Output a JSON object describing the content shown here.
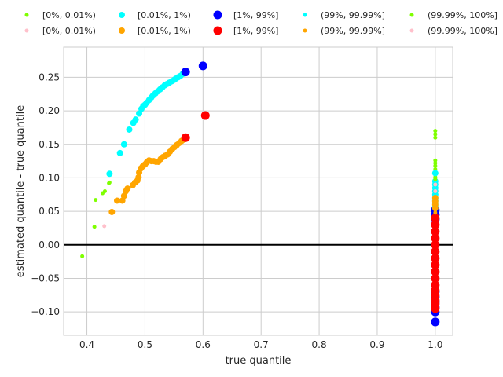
{
  "chart_data": {
    "type": "scatter",
    "xlabel": "true quantile",
    "ylabel": "estimated quantile - true quantile",
    "xlim": [
      0.36,
      1.03
    ],
    "ylim": [
      -0.135,
      0.295
    ],
    "xticks": [
      "0.4",
      "0.5",
      "0.6",
      "0.7",
      "0.8",
      "0.9",
      "1.0"
    ],
    "xtick_values": [
      0.4,
      0.5,
      0.6,
      0.7,
      0.8,
      0.9,
      1.0
    ],
    "yticks": [
      "−0.10",
      "−0.05",
      "0.00",
      "0.05",
      "0.10",
      "0.15",
      "0.20",
      "0.25"
    ],
    "ytick_values": [
      -0.1,
      -0.05,
      0.0,
      0.05,
      0.1,
      0.15,
      0.2,
      0.25
    ],
    "grid": true,
    "reference_line_y": 0.0,
    "legend_placement": "top",
    "series": [
      {
        "name": "[0%, 0.01%)",
        "color": "#7fff00",
        "size": "small",
        "legend_row": 1,
        "legend_col": 1,
        "points": [
          [
            0.392,
            -0.017
          ],
          [
            0.413,
            0.027
          ],
          [
            0.415,
            0.067
          ],
          [
            0.427,
            0.077
          ],
          [
            0.431,
            0.08
          ],
          [
            0.438,
            0.092
          ],
          [
            0.439,
            0.093
          ],
          [
            1.0,
            0.17
          ],
          [
            1.0,
            0.165
          ],
          [
            1.0,
            0.126
          ],
          [
            1.0,
            0.118
          ],
          [
            1.0,
            0.113
          ],
          [
            1.0,
            0.108
          ],
          [
            1.0,
            0.101
          ],
          [
            1.0,
            0.093
          ],
          [
            1.0,
            0.085
          ]
        ]
      },
      {
        "name": "[0.01%, 1%)",
        "color": "#00ffff",
        "size": "medium",
        "legend_row": 1,
        "legend_col": 2,
        "points": [
          [
            0.439,
            0.106
          ],
          [
            0.457,
            0.137
          ],
          [
            0.464,
            0.15
          ],
          [
            0.473,
            0.172
          ],
          [
            0.48,
            0.182
          ],
          [
            0.484,
            0.187
          ],
          [
            0.49,
            0.196
          ],
          [
            0.494,
            0.203
          ],
          [
            0.497,
            0.207
          ],
          [
            0.5,
            0.209
          ],
          [
            0.503,
            0.212
          ],
          [
            0.507,
            0.216
          ],
          [
            0.511,
            0.22
          ],
          [
            0.514,
            0.223
          ],
          [
            0.518,
            0.226
          ],
          [
            0.522,
            0.229
          ],
          [
            0.526,
            0.232
          ],
          [
            0.53,
            0.235
          ],
          [
            0.534,
            0.238
          ],
          [
            0.538,
            0.24
          ],
          [
            0.542,
            0.242
          ],
          [
            0.546,
            0.244
          ],
          [
            0.55,
            0.246
          ],
          [
            0.553,
            0.248
          ],
          [
            0.557,
            0.25
          ],
          [
            0.561,
            0.252
          ],
          [
            0.565,
            0.255
          ],
          [
            1.0,
            0.107
          ],
          [
            1.0,
            0.095
          ],
          [
            1.0,
            0.09
          ],
          [
            1.0,
            0.085
          ],
          [
            1.0,
            0.08
          ],
          [
            1.0,
            0.075
          ],
          [
            1.0,
            0.07
          ],
          [
            1.0,
            0.066
          ],
          [
            1.0,
            0.062
          ],
          [
            1.0,
            0.058
          ]
        ]
      },
      {
        "name": "[1%, 99%]",
        "color": "#0000ff",
        "size": "large",
        "legend_row": 1,
        "legend_col": 3,
        "points": [
          [
            0.57,
            0.258
          ],
          [
            0.6,
            0.267
          ],
          [
            1.0,
            0.052
          ],
          [
            1.0,
            0.045
          ],
          [
            1.0,
            0.038
          ],
          [
            1.0,
            -0.07
          ],
          [
            1.0,
            -0.078
          ],
          [
            1.0,
            -0.085
          ],
          [
            1.0,
            -0.093
          ],
          [
            1.0,
            -0.1
          ],
          [
            1.0,
            -0.115
          ]
        ]
      },
      {
        "name": "(99%, 99.99%]",
        "color": "#00ffff",
        "size": "small",
        "legend_row": 1,
        "legend_col": 4,
        "points": [
          [
            1.0,
            0.08
          ],
          [
            1.0,
            0.074
          ],
          [
            1.0,
            0.068
          ]
        ]
      },
      {
        "name": "(99.99%, 100%]",
        "color": "#7fff00",
        "size": "small",
        "legend_row": 1,
        "legend_col": 5,
        "points": [
          [
            1.0,
            0.16
          ],
          [
            1.0,
            0.122
          ],
          [
            1.0,
            0.098
          ]
        ]
      },
      {
        "name": "[0%, 0.01%)",
        "color": "#ffc0cb",
        "size": "small",
        "legend_row": 2,
        "legend_col": 1,
        "points": [
          [
            0.43,
            0.028
          ],
          [
            1.0,
            0.03
          ],
          [
            1.0,
            0.042
          ],
          [
            1.0,
            0.025
          ]
        ]
      },
      {
        "name": "[0.01%, 1%)",
        "color": "#ffa500",
        "size": "medium",
        "legend_row": 2,
        "legend_col": 2,
        "points": [
          [
            0.443,
            0.049
          ],
          [
            0.452,
            0.066
          ],
          [
            0.461,
            0.066
          ],
          [
            0.464,
            0.073
          ],
          [
            0.467,
            0.08
          ],
          [
            0.47,
            0.084
          ],
          [
            0.479,
            0.089
          ],
          [
            0.483,
            0.093
          ],
          [
            0.487,
            0.096
          ],
          [
            0.489,
            0.101
          ],
          [
            0.49,
            0.108
          ],
          [
            0.493,
            0.114
          ],
          [
            0.496,
            0.117
          ],
          [
            0.5,
            0.12
          ],
          [
            0.503,
            0.123
          ],
          [
            0.507,
            0.126
          ],
          [
            0.511,
            0.125
          ],
          [
            0.515,
            0.125
          ],
          [
            0.519,
            0.124
          ],
          [
            0.523,
            0.124
          ],
          [
            0.527,
            0.128
          ],
          [
            0.531,
            0.131
          ],
          [
            0.535,
            0.133
          ],
          [
            0.539,
            0.135
          ],
          [
            0.543,
            0.139
          ],
          [
            0.547,
            0.143
          ],
          [
            0.551,
            0.146
          ],
          [
            0.555,
            0.149
          ],
          [
            0.559,
            0.152
          ],
          [
            0.563,
            0.155
          ],
          [
            0.567,
            0.157
          ],
          [
            1.0,
            0.07
          ],
          [
            1.0,
            0.065
          ],
          [
            1.0,
            0.06
          ],
          [
            1.0,
            0.055
          ]
        ]
      },
      {
        "name": "[1%, 99%]",
        "color": "#ff0000",
        "size": "large",
        "legend_row": 2,
        "legend_col": 3,
        "points": [
          [
            0.57,
            0.16
          ],
          [
            0.604,
            0.193
          ],
          [
            1.0,
            0.04
          ],
          [
            1.0,
            0.03
          ],
          [
            1.0,
            0.02
          ],
          [
            1.0,
            0.01
          ],
          [
            1.0,
            0.0
          ],
          [
            1.0,
            -0.01
          ],
          [
            1.0,
            -0.02
          ],
          [
            1.0,
            -0.03
          ],
          [
            1.0,
            -0.04
          ],
          [
            1.0,
            -0.05
          ],
          [
            1.0,
            -0.06
          ],
          [
            1.0,
            -0.068
          ],
          [
            1.0,
            -0.075
          ],
          [
            1.0,
            -0.083
          ],
          [
            1.0,
            -0.088
          ],
          [
            1.0,
            -0.095
          ]
        ]
      },
      {
        "name": "(99%, 99.99%]",
        "color": "#ffa500",
        "size": "small",
        "legend_row": 2,
        "legend_col": 4,
        "points": [
          [
            1.0,
            0.066
          ],
          [
            1.0,
            0.06
          ],
          [
            1.0,
            0.052
          ],
          [
            1.0,
            0.048
          ]
        ]
      },
      {
        "name": "(99.99%, 100%]",
        "color": "#ffc0cb",
        "size": "small",
        "legend_row": 2,
        "legend_col": 5,
        "points": [
          [
            1.0,
            0.09
          ],
          [
            1.0,
            0.08
          ]
        ]
      }
    ]
  }
}
